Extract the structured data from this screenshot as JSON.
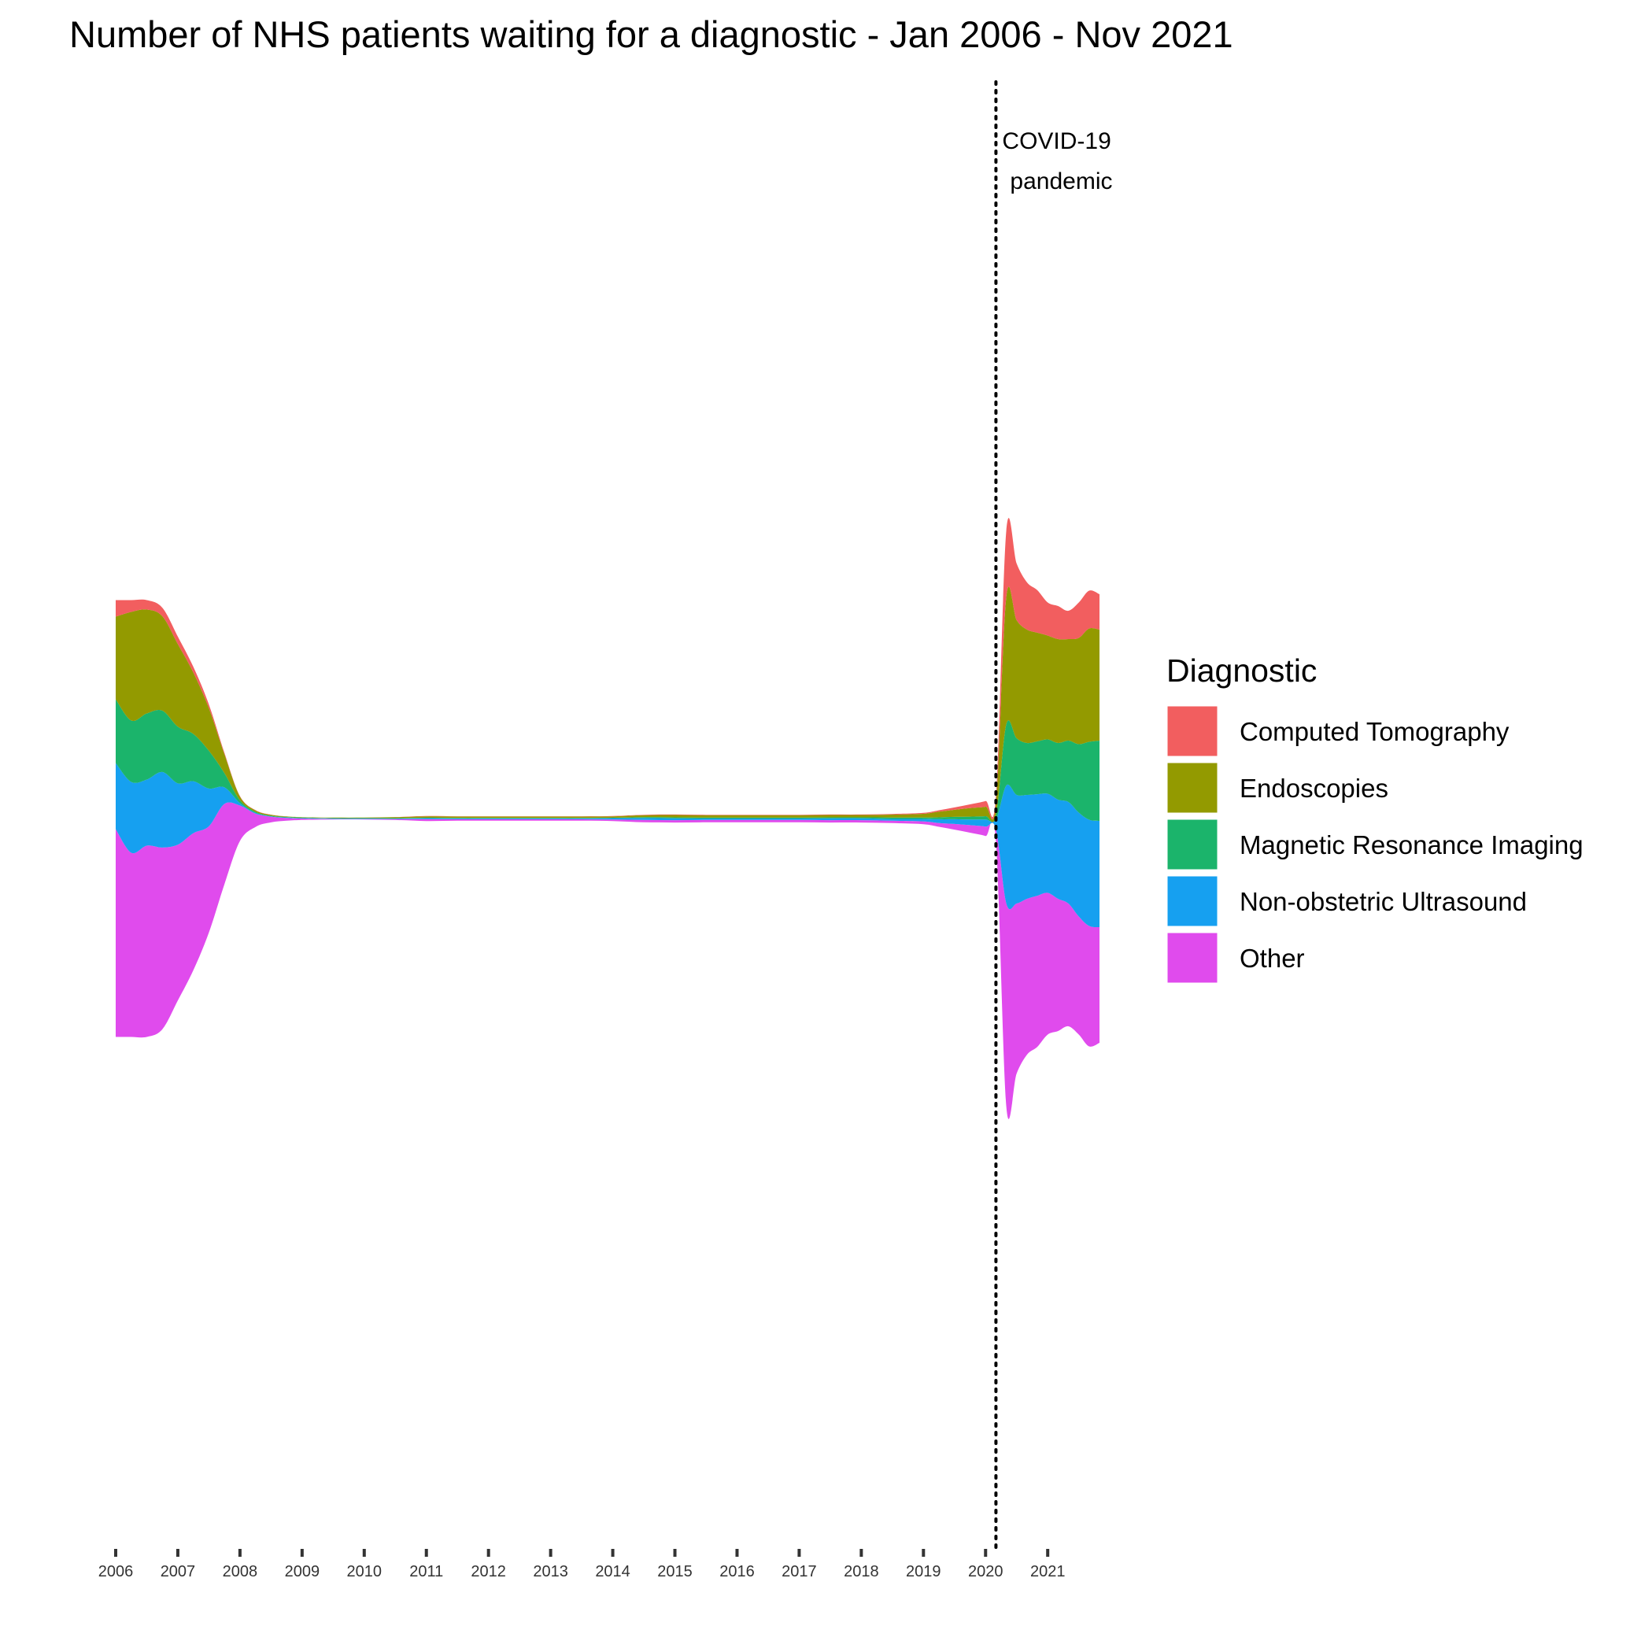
{
  "chart_data": {
    "type": "area",
    "subtype": "streamgraph",
    "title": "Number of NHS patients waiting for a diagnostic - Jan 2006 - Nov 2021",
    "xlabel": "",
    "ylabel": "",
    "x_ticks": [
      "2006",
      "2007",
      "2008",
      "2009",
      "2010",
      "2011",
      "2012",
      "2013",
      "2014",
      "2015",
      "2016",
      "2017",
      "2018",
      "2019",
      "2020",
      "2021"
    ],
    "annotation": {
      "date": "2020-03",
      "lines": [
        "COVID-19",
        "pandemic"
      ],
      "line_style": "dotted"
    },
    "legend": {
      "title": "Diagnostic",
      "placement": "right"
    },
    "grid": false,
    "x": [
      "2006-01",
      "2006-04",
      "2006-07",
      "2006-10",
      "2007-01",
      "2007-04",
      "2007-07",
      "2007-10",
      "2008-01",
      "2008-04",
      "2008-07",
      "2008-10",
      "2009-01",
      "2009-07",
      "2010-01",
      "2010-07",
      "2011-01",
      "2011-07",
      "2012-01",
      "2012-07",
      "2013-01",
      "2013-07",
      "2014-01",
      "2014-07",
      "2015-01",
      "2015-07",
      "2016-01",
      "2016-07",
      "2017-01",
      "2017-07",
      "2018-01",
      "2018-07",
      "2019-01",
      "2019-04",
      "2019-07",
      "2019-10",
      "2020-01",
      "2020-03",
      "2020-05",
      "2020-07",
      "2020-09",
      "2020-11",
      "2021-01",
      "2021-03",
      "2021-05",
      "2021-07",
      "2021-09",
      "2021-11"
    ],
    "series": [
      {
        "name": "Other",
        "color": "#E04BED",
        "values": [
          440,
          390,
          405,
          385,
          330,
          290,
          225,
          170,
          75,
          28,
          12,
          6,
          3,
          1,
          1,
          2,
          4,
          3,
          3,
          3,
          3,
          3,
          3,
          5,
          5,
          5,
          5,
          5,
          5,
          5,
          5,
          5,
          6,
          8,
          12,
          16,
          20,
          25,
          430,
          360,
          330,
          320,
          300,
          280,
          260,
          250,
          255,
          245
        ]
      },
      {
        "name": "Non-obstetric Ultrasound",
        "color": "#16A0F0",
        "values": [
          140,
          150,
          140,
          160,
          130,
          110,
          80,
          35,
          5,
          2,
          1,
          1,
          1,
          1,
          1,
          1,
          2,
          2,
          2,
          2,
          2,
          2,
          3,
          4,
          4,
          3,
          3,
          3,
          3,
          4,
          4,
          4,
          5,
          8,
          10,
          12,
          15,
          20,
          250,
          230,
          220,
          215,
          210,
          210,
          215,
          220,
          225,
          225
        ]
      },
      {
        "name": "Magnetic Resonance Imaging",
        "color": "#1BB46B",
        "values": [
          135,
          130,
          140,
          130,
          120,
          100,
          80,
          30,
          6,
          2,
          1,
          1,
          1,
          1,
          1,
          1,
          1,
          1,
          1,
          1,
          1,
          1,
          1,
          2,
          2,
          2,
          2,
          2,
          2,
          2,
          2,
          3,
          3,
          4,
          5,
          6,
          7,
          10,
          130,
          120,
          110,
          112,
          115,
          120,
          130,
          145,
          165,
          170
        ]
      },
      {
        "name": "Endoscopies",
        "color": "#939A00",
        "values": [
          175,
          230,
          220,
          200,
          175,
          130,
          90,
          40,
          8,
          3,
          2,
          1,
          1,
          1,
          1,
          2,
          3,
          3,
          3,
          3,
          3,
          3,
          3,
          4,
          5,
          5,
          5,
          5,
          5,
          5,
          5,
          6,
          8,
          12,
          15,
          18,
          20,
          25,
          270,
          250,
          240,
          230,
          220,
          220,
          215,
          225,
          240,
          235
        ]
      },
      {
        "name": "Computed Tomography",
        "color": "#F25E5F",
        "values": [
          35,
          25,
          20,
          18,
          16,
          12,
          8,
          3,
          1,
          0.5,
          0.3,
          0.2,
          0.1,
          0.1,
          0.1,
          0.2,
          0.5,
          0.5,
          0.5,
          0.5,
          0.5,
          0.5,
          0.5,
          1,
          1,
          1,
          1,
          1,
          1,
          1,
          1,
          1.5,
          2,
          3,
          5,
          8,
          12,
          15,
          140,
          120,
          100,
          90,
          70,
          70,
          60,
          75,
          80,
          75
        ]
      }
    ]
  }
}
